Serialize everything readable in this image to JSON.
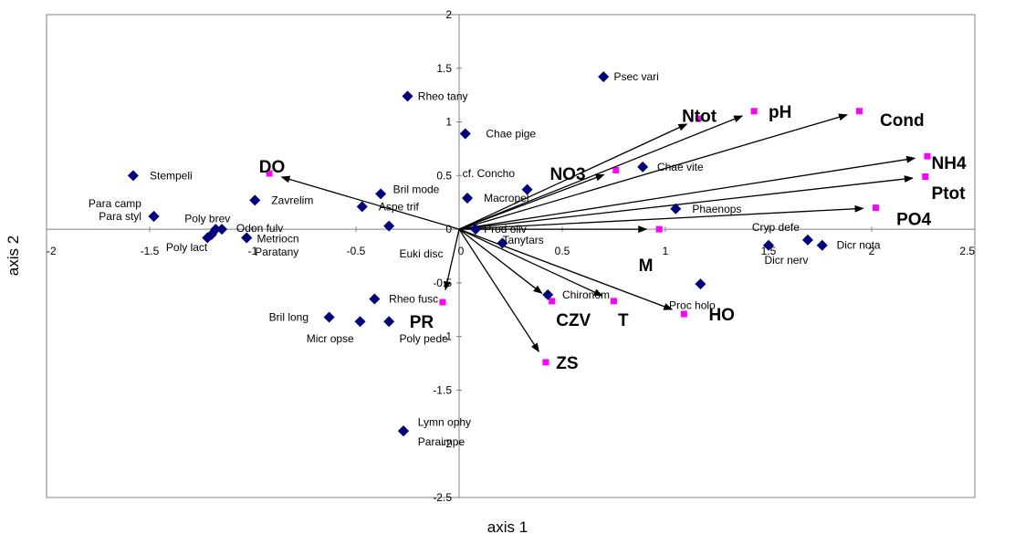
{
  "chart_data": {
    "type": "scatter",
    "title": "",
    "xlabel": "axis 1",
    "ylabel": "axis 2",
    "xlim": [
      -2,
      2.5
    ],
    "ylim": [
      -2.5,
      2
    ],
    "xticks": [
      {
        "v": -2,
        "label": "-2"
      },
      {
        "v": -1.5,
        "label": "-1.5"
      },
      {
        "v": -1,
        "label": "-1"
      },
      {
        "v": -0.5,
        "label": "-0.5"
      },
      {
        "v": 0,
        "label": "0"
      },
      {
        "v": 0.5,
        "label": "0.5"
      },
      {
        "v": 1,
        "label": "1"
      },
      {
        "v": 1.5,
        "label": "1.5"
      },
      {
        "v": 2,
        "label": "2"
      },
      {
        "v": 2.5,
        "label": "2.5"
      }
    ],
    "yticks": [
      {
        "v": 2,
        "label": "2"
      },
      {
        "v": 1.5,
        "label": "1.5"
      },
      {
        "v": 1,
        "label": "1"
      },
      {
        "v": 0.5,
        "label": "0.5"
      },
      {
        "v": 0,
        "label": "0"
      },
      {
        "v": -0.5,
        "label": "-0.5"
      },
      {
        "v": -1,
        "label": "-1"
      },
      {
        "v": -1.5,
        "label": "-1.5"
      },
      {
        "v": -2,
        "label": "-2"
      },
      {
        "v": -2.5,
        "label": "-2.5"
      }
    ],
    "grid": false,
    "legend": "none",
    "colors": {
      "species": "#000080",
      "env_points": "#ff00ff",
      "arrows": "#000000"
    },
    "species": [
      {
        "name": "Psec vari",
        "x": 0.7,
        "y": 1.42,
        "lx": 0.05,
        "ly": 0.0,
        "anchor": "start"
      },
      {
        "name": "Rheo tany",
        "x": -0.25,
        "y": 1.24,
        "lx": 0.05,
        "ly": 0.0,
        "anchor": "start"
      },
      {
        "name": "Chae pige",
        "x": 0.03,
        "y": 0.89,
        "lx": 0.1,
        "ly": 0.0,
        "anchor": "start"
      },
      {
        "name": "Stempeli",
        "x": -1.58,
        "y": 0.5,
        "lx": 0.08,
        "ly": 0.0,
        "anchor": "start"
      },
      {
        "name": "Para camp",
        "x": -1.48,
        "y": 0.12,
        "lx": -0.06,
        "ly": 0.12,
        "anchor": "end"
      },
      {
        "name": "Para styl",
        "x": -1.48,
        "y": 0.12,
        "lx": -0.06,
        "ly": 0.0,
        "anchor": "end"
      },
      {
        "name": "Zavrelim",
        "x": -0.99,
        "y": 0.27,
        "lx": 0.08,
        "ly": 0.0,
        "anchor": "start"
      },
      {
        "name": "Bril mode",
        "x": -0.38,
        "y": 0.33,
        "lx": 0.06,
        "ly": 0.04,
        "anchor": "start"
      },
      {
        "name": "Aspe trif",
        "x": -0.47,
        "y": 0.21,
        "lx": 0.08,
        "ly": 0.0,
        "anchor": "start"
      },
      {
        "name": "cf. Concho",
        "x": 0.33,
        "y": 0.37,
        "lx": -0.06,
        "ly": 0.15,
        "anchor": "end"
      },
      {
        "name": "Macropel",
        "x": 0.04,
        "y": 0.29,
        "lx": 0.08,
        "ly": 0.0,
        "anchor": "start"
      },
      {
        "name": "Chae vite",
        "x": 0.89,
        "y": 0.58,
        "lx": 0.07,
        "ly": 0.0,
        "anchor": "start"
      },
      {
        "name": "Phaenops",
        "x": 1.05,
        "y": 0.19,
        "lx": 0.08,
        "ly": 0.0,
        "anchor": "start"
      },
      {
        "name": "Poly brev",
        "x": -1.18,
        "y": 0.0,
        "lx": -0.04,
        "ly": 0.1,
        "anchor": "middle"
      },
      {
        "name": "Odon fulv",
        "x": -1.15,
        "y": 0.0,
        "lx": 0.07,
        "ly": 0.01,
        "anchor": "start"
      },
      {
        "name": "Metriocn",
        "x": -1.03,
        "y": -0.08,
        "lx": 0.05,
        "ly": -0.01,
        "anchor": "start"
      },
      {
        "name": "Paratany",
        "x": -1.03,
        "y": -0.08,
        "lx": 0.04,
        "ly": -0.13,
        "anchor": "start"
      },
      {
        "name": "Poly lact",
        "x": -1.22,
        "y": -0.08,
        "lx": 0.0,
        "ly": -0.09,
        "anchor": "end"
      },
      {
        "name": "Poly lact (2)",
        "x": -1.2,
        "y": -0.05,
        "lx": 0,
        "ly": 0,
        "anchor": "none"
      },
      {
        "name": "Euki disc",
        "x": -0.34,
        "y": 0.03,
        "lx": 0.05,
        "ly": -0.26,
        "anchor": "start"
      },
      {
        "name": "Prod oliv",
        "x": 0.08,
        "y": 0.0,
        "lx": 0.04,
        "ly": 0.0,
        "anchor": "start"
      },
      {
        "name": "Tanytars",
        "x": 0.21,
        "y": -0.13,
        "lx": 0.0,
        "ly": 0.03,
        "anchor": "start"
      },
      {
        "name": "Chironom",
        "x": 0.43,
        "y": -0.61,
        "lx": 0.07,
        "ly": 0.0,
        "anchor": "start"
      },
      {
        "name": "Proc holo",
        "x": 1.17,
        "y": -0.51,
        "lx": -0.04,
        "ly": -0.2,
        "anchor": "middle"
      },
      {
        "name": "Cryp defe",
        "x": 1.69,
        "y": -0.1,
        "lx": -0.04,
        "ly": 0.12,
        "anchor": "end"
      },
      {
        "name": "Dicr nerv",
        "x": 1.5,
        "y": -0.15,
        "lx": -0.02,
        "ly": -0.14,
        "anchor": "start"
      },
      {
        "name": "Dicr nota",
        "x": 1.76,
        "y": -0.15,
        "lx": 0.07,
        "ly": 0.0,
        "anchor": "start"
      },
      {
        "name": "Rheo fusc",
        "x": -0.41,
        "y": -0.65,
        "lx": 0.07,
        "ly": 0.0,
        "anchor": "start"
      },
      {
        "name": "Bril long",
        "x": -0.63,
        "y": -0.82,
        "lx": -0.1,
        "ly": 0.0,
        "anchor": "end"
      },
      {
        "name": "Micr opse",
        "x": -0.48,
        "y": -0.86,
        "lx": -0.03,
        "ly": -0.16,
        "anchor": "end"
      },
      {
        "name": "Poly pede",
        "x": -0.34,
        "y": -0.86,
        "lx": 0.05,
        "ly": -0.16,
        "anchor": "start"
      },
      {
        "name": "Lymn ophy",
        "x": -0.27,
        "y": -1.88,
        "lx": 0.07,
        "ly": 0.08,
        "anchor": "start"
      },
      {
        "name": "Paraimpe",
        "x": -0.27,
        "y": -1.88,
        "lx": 0.07,
        "ly": -0.1,
        "anchor": "start"
      }
    ],
    "environmental_vectors": [
      {
        "name": "DO",
        "x": -0.92,
        "y": 0.52,
        "lx": -0.05,
        "ly": 0.07,
        "anchor": "start"
      },
      {
        "name": "NO3",
        "x": 0.76,
        "y": 0.55,
        "lx": -0.32,
        "ly": -0.03,
        "anchor": "start"
      },
      {
        "name": "Ntot",
        "x": 1.16,
        "y": 1.03,
        "lx": -0.08,
        "ly": 0.03,
        "anchor": "start"
      },
      {
        "name": "pH",
        "x": 1.43,
        "y": 1.1,
        "lx": 0.07,
        "ly": 0.0,
        "anchor": "start"
      },
      {
        "name": "Cond",
        "x": 1.94,
        "y": 1.1,
        "lx": 0.1,
        "ly": -0.08,
        "anchor": "start"
      },
      {
        "name": "NH4",
        "x": 2.27,
        "y": 0.68,
        "lx": 0.02,
        "ly": -0.06,
        "anchor": "start"
      },
      {
        "name": "Ptot",
        "x": 2.26,
        "y": 0.49,
        "lx": 0.03,
        "ly": -0.15,
        "anchor": "start"
      },
      {
        "name": "PO4",
        "x": 2.02,
        "y": 0.2,
        "lx": 0.1,
        "ly": -0.1,
        "anchor": "start"
      },
      {
        "name": "M",
        "x": 0.97,
        "y": 0.0,
        "lx": -0.1,
        "ly": -0.33,
        "anchor": "start"
      },
      {
        "name": "CZV",
        "x": 0.45,
        "y": -0.67,
        "lx": 0.02,
        "ly": -0.17,
        "anchor": "start"
      },
      {
        "name": "T",
        "x": 0.75,
        "y": -0.67,
        "lx": 0.02,
        "ly": -0.17,
        "anchor": "start"
      },
      {
        "name": "HO",
        "x": 1.09,
        "y": -0.79,
        "lx": 0.12,
        "ly": -0.0,
        "anchor": "start"
      },
      {
        "name": "ZS",
        "x": 0.42,
        "y": -1.24,
        "lx": 0.05,
        "ly": 0.0,
        "anchor": "start"
      },
      {
        "name": "PR",
        "x": -0.08,
        "y": -0.68,
        "lx": -0.16,
        "ly": -0.18,
        "anchor": "start"
      }
    ]
  }
}
